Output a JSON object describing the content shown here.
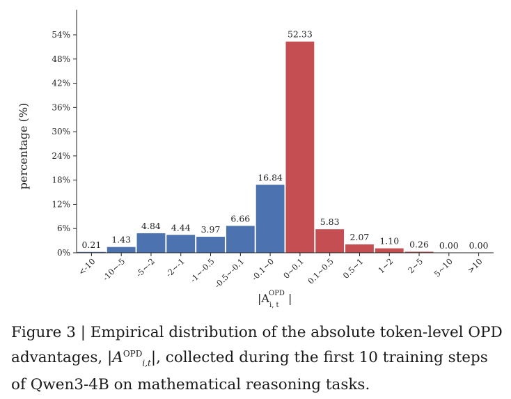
{
  "chart_data": {
    "type": "bar",
    "categories": [
      "<-10",
      "-10~-5",
      "-5~-2",
      "-2~-1",
      "-1~-0.5",
      "-0.5~-0.1",
      "-0.1~0",
      "0~0.1",
      "0.1~0.5",
      "0.5~1",
      "1~2",
      "2~5",
      "5~10",
      ">10"
    ],
    "values": [
      0.21,
      1.43,
      4.84,
      4.44,
      3.97,
      6.66,
      16.84,
      52.33,
      5.83,
      2.07,
      1.1,
      0.26,
      0.0,
      0.0
    ],
    "value_labels": [
      "0.21",
      "1.43",
      "4.84",
      "4.44",
      "3.97",
      "6.66",
      "16.84",
      "52.33",
      "5.83",
      "2.07",
      "1.10",
      "0.26",
      "0.00",
      "0.00"
    ],
    "colors": [
      "#4c72b0",
      "#4c72b0",
      "#4c72b0",
      "#4c72b0",
      "#4c72b0",
      "#4c72b0",
      "#4c72b0",
      "#c44e52",
      "#c44e52",
      "#c44e52",
      "#c44e52",
      "#c44e52",
      "#c44e52",
      "#c44e52"
    ],
    "ylabel": "percentage (%)",
    "xlabel": {
      "main": "|A",
      "sup": "OPD",
      "sub": "i, t",
      "close": "|"
    },
    "yticks": [
      0,
      6,
      12,
      18,
      24,
      30,
      36,
      42,
      48,
      54
    ],
    "ytick_labels": [
      "0%",
      "6%",
      "12%",
      "18%",
      "24%",
      "30%",
      "36%",
      "42%",
      "48%",
      "54%"
    ],
    "ylim": [
      0,
      56
    ],
    "grid": false
  },
  "caption": {
    "prefix": "Figure 3 | Empirical distribution of the absolute token-level OPD advantages, |",
    "math_main": "A",
    "math_sup": "OPD",
    "math_sub": "i,t",
    "suffix": "|, collected during the first 10 training steps of Qwen3-4B on mathematical reasoning tasks."
  }
}
